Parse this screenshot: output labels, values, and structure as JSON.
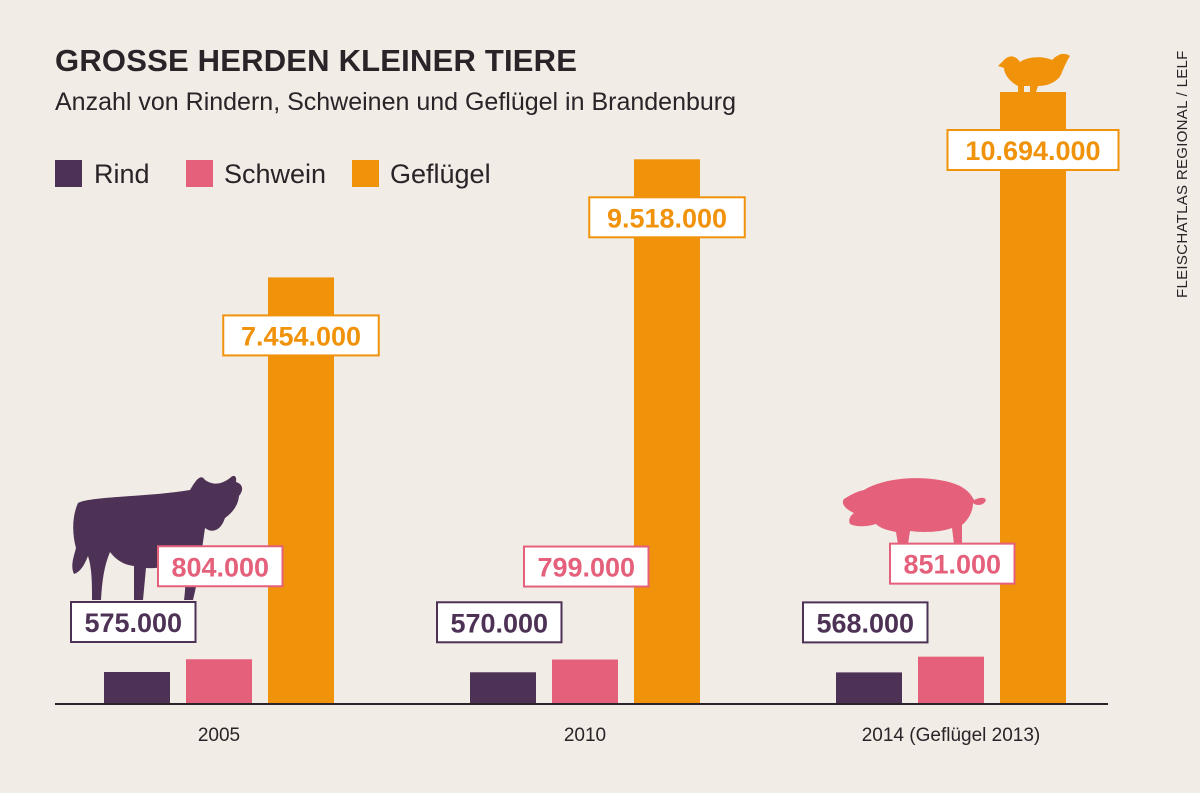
{
  "title": "GROSSE HERDEN KLEINER TIERE",
  "subtitle": "Anzahl von Rindern, Schweinen und Geflügel in Brandenburg",
  "source": "FLEISCHATLAS REGIONAL / LELF",
  "colors": {
    "background": "#f1ece6",
    "Rind": "#4d3256",
    "Schwein": "#e4607b",
    "Geflügel": "#f0930a",
    "axis": "#2a2328"
  },
  "icons": [
    "cow-icon",
    "pig-icon",
    "chicken-icon"
  ],
  "chart_data": {
    "type": "bar",
    "categories": [
      "2005",
      "2010",
      "2014 (Geflügel 2013)"
    ],
    "series": [
      {
        "name": "Rind",
        "values": [
          575000,
          570000,
          568000
        ],
        "labels": [
          "575.000",
          "570.000",
          "568.000"
        ]
      },
      {
        "name": "Schwein",
        "values": [
          804000,
          799000,
          851000
        ],
        "labels": [
          "804.000",
          "799.000",
          "851.000"
        ]
      },
      {
        "name": "Geflügel",
        "values": [
          7454000,
          9518000,
          10694000
        ],
        "labels": [
          "7.454.000",
          "9.518.000",
          "10.694.000"
        ]
      }
    ],
    "legend": {
      "position": "top-left",
      "entries": [
        "Rind",
        "Schwein",
        "Geflügel"
      ]
    },
    "grid": false,
    "xlabel": "",
    "ylabel": ""
  }
}
